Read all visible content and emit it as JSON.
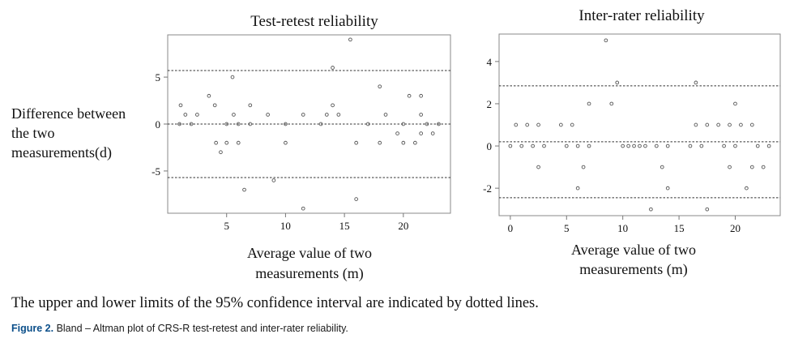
{
  "chart_data": [
    {
      "type": "scatter",
      "title": "Test-retest reliability",
      "xlabel": "Average value of two measurements (m)",
      "ylabel": "Difference between the two measurements(d)",
      "xlim": [
        0,
        24
      ],
      "ylim": [
        -9.5,
        9.5
      ],
      "xticks": [
        5,
        10,
        15,
        20
      ],
      "xtick_labels": [
        "5",
        "10",
        "15",
        "20"
      ],
      "yticks": [
        5,
        0,
        -5
      ],
      "ytick_labels": [
        "5",
        "0",
        "-5"
      ],
      "reference_lines": [
        5.7,
        0,
        -5.7
      ],
      "line_style": "dotted",
      "grid": false,
      "series": [
        {
          "points": [
            [
              1,
              0
            ],
            [
              1.1,
              2
            ],
            [
              1.5,
              1
            ],
            [
              2,
              0
            ],
            [
              2.5,
              1
            ],
            [
              3.5,
              3
            ],
            [
              4,
              2
            ],
            [
              4.1,
              -2
            ],
            [
              4.5,
              -3
            ],
            [
              5,
              0
            ],
            [
              5,
              -2
            ],
            [
              5.5,
              5
            ],
            [
              5.6,
              1
            ],
            [
              6,
              0
            ],
            [
              6,
              -2
            ],
            [
              6.5,
              -7
            ],
            [
              7,
              2
            ],
            [
              7,
              0
            ],
            [
              8.5,
              1
            ],
            [
              9,
              -6
            ],
            [
              10,
              0
            ],
            [
              10,
              -2
            ],
            [
              11.5,
              1
            ],
            [
              11.5,
              -9
            ],
            [
              13,
              0
            ],
            [
              13.5,
              1
            ],
            [
              14,
              2
            ],
            [
              14,
              6
            ],
            [
              14.5,
              1
            ],
            [
              15.5,
              9
            ],
            [
              16,
              -2
            ],
            [
              16,
              -8
            ],
            [
              17,
              0
            ],
            [
              18,
              4
            ],
            [
              18,
              -2
            ],
            [
              18.5,
              1
            ],
            [
              19.5,
              -1
            ],
            [
              20,
              0
            ],
            [
              20,
              -2
            ],
            [
              20.5,
              3
            ],
            [
              21,
              -2
            ],
            [
              21.5,
              3
            ],
            [
              21.5,
              1
            ],
            [
              21.5,
              -1
            ],
            [
              22,
              0
            ],
            [
              22.5,
              -1
            ],
            [
              23,
              0
            ]
          ]
        }
      ]
    },
    {
      "type": "scatter",
      "title": "Inter-rater reliability",
      "xlabel": "Average value of two measurements (m)",
      "ylabel": "",
      "xlim": [
        -1,
        24
      ],
      "ylim": [
        -3.3,
        5.3
      ],
      "xticks": [
        0,
        5,
        10,
        15,
        20
      ],
      "xtick_labels": [
        "0",
        "5",
        "10",
        "15",
        "20"
      ],
      "yticks": [
        4,
        2,
        0,
        -2
      ],
      "ytick_labels": [
        "4",
        "2",
        "0",
        "-2"
      ],
      "reference_lines": [
        2.85,
        0.2,
        -2.45
      ],
      "line_style": "dotted",
      "grid": false,
      "series": [
        {
          "points": [
            [
              0,
              0
            ],
            [
              0.5,
              1
            ],
            [
              1,
              0
            ],
            [
              1.5,
              1
            ],
            [
              2,
              0
            ],
            [
              2.5,
              1
            ],
            [
              2.5,
              -1
            ],
            [
              3,
              0
            ],
            [
              4.5,
              1
            ],
            [
              5,
              0
            ],
            [
              5.5,
              1
            ],
            [
              6,
              0
            ],
            [
              6,
              -2
            ],
            [
              6.5,
              -1
            ],
            [
              7,
              2
            ],
            [
              7,
              0
            ],
            [
              8.5,
              5
            ],
            [
              9,
              2
            ],
            [
              9.5,
              3
            ],
            [
              10,
              0
            ],
            [
              10.5,
              0
            ],
            [
              11,
              0
            ],
            [
              11.5,
              0
            ],
            [
              12,
              0
            ],
            [
              12.5,
              -3
            ],
            [
              13,
              0
            ],
            [
              13.5,
              -1
            ],
            [
              14,
              0
            ],
            [
              14,
              -2
            ],
            [
              16,
              0
            ],
            [
              16.5,
              3
            ],
            [
              16.5,
              1
            ],
            [
              17,
              0
            ],
            [
              17.5,
              1
            ],
            [
              17.5,
              -3
            ],
            [
              18.5,
              1
            ],
            [
              19,
              0
            ],
            [
              19.5,
              1
            ],
            [
              19.5,
              -1
            ],
            [
              20,
              2
            ],
            [
              20,
              0
            ],
            [
              20.5,
              1
            ],
            [
              21,
              -2
            ],
            [
              21.5,
              1
            ],
            [
              21.5,
              -1
            ],
            [
              22,
              0
            ],
            [
              22.5,
              -1
            ],
            [
              23,
              0
            ]
          ]
        }
      ]
    }
  ],
  "note": "The upper and lower limits of the 95% confidence interval are indicated by dotted lines.",
  "caption": {
    "label": "Figure 2.",
    "text": " Bland – Altman plot of CRS-R test-retest and inter-rater reliability."
  },
  "colors": {
    "axis": "#777777",
    "point": "#555555",
    "caption_label": "#0b4f8a"
  }
}
